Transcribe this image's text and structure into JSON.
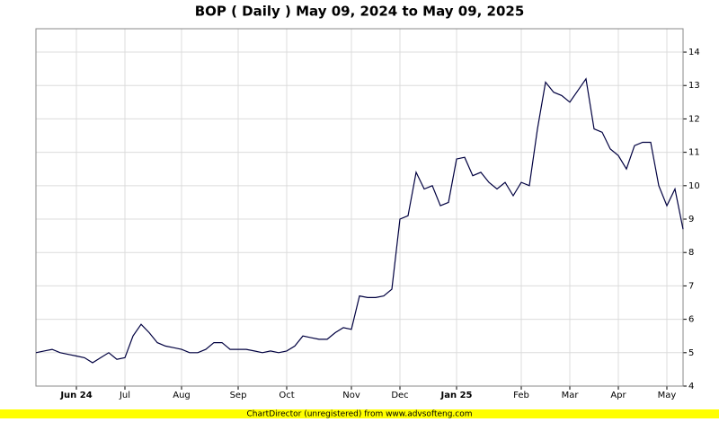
{
  "chart_data": {
    "type": "line",
    "title": "BOP ( Daily ) May 09, 2024 to May 09, 2025",
    "footer": "ChartDirector (unregistered) from www.advsofteng.com",
    "categories": [
      null,
      null,
      null,
      null,
      null,
      "Jun 24",
      null,
      null,
      null,
      null,
      null,
      "Jul",
      null,
      null,
      null,
      null,
      null,
      null,
      "Aug",
      null,
      null,
      null,
      null,
      null,
      null,
      "Sep",
      null,
      null,
      null,
      null,
      null,
      "Oct",
      null,
      null,
      null,
      null,
      null,
      null,
      null,
      "Nov",
      null,
      null,
      null,
      null,
      null,
      "Dec",
      null,
      null,
      null,
      null,
      null,
      null,
      "Jan 25",
      null,
      null,
      null,
      null,
      null,
      null,
      null,
      "Feb",
      null,
      null,
      null,
      null,
      null,
      "Mar",
      null,
      null,
      null,
      null,
      null,
      "Apr",
      null,
      null,
      null,
      null,
      null,
      "May",
      null,
      null
    ],
    "series": [
      {
        "name": "BOP",
        "color": "#000040",
        "values": [
          5.0,
          5.05,
          5.1,
          5.0,
          4.95,
          4.9,
          4.85,
          4.7,
          4.85,
          5.0,
          4.8,
          4.85,
          5.5,
          5.85,
          5.6,
          5.3,
          5.2,
          5.15,
          5.1,
          5.0,
          5.0,
          5.1,
          5.3,
          5.3,
          5.1,
          5.1,
          5.1,
          5.05,
          5.0,
          5.05,
          5.0,
          5.05,
          5.2,
          5.5,
          5.45,
          5.4,
          5.4,
          5.6,
          5.75,
          5.7,
          6.7,
          6.65,
          6.65,
          6.7,
          6.9,
          9.0,
          9.1,
          10.4,
          9.9,
          10.0,
          9.4,
          9.5,
          10.8,
          10.85,
          10.3,
          10.4,
          10.1,
          9.9,
          10.1,
          9.7,
          10.1,
          10.0,
          11.7,
          13.1,
          12.8,
          12.7,
          12.5,
          12.85,
          13.2,
          11.7,
          11.6,
          11.1,
          10.9,
          10.5,
          11.2,
          11.3,
          11.3,
          10.0,
          9.4,
          9.9,
          8.7
        ]
      }
    ],
    "ylim": [
      4,
      14.7
    ],
    "yticks": [
      4,
      5,
      6,
      7,
      8,
      9,
      10,
      11,
      12,
      13,
      14
    ],
    "grid": true
  }
}
